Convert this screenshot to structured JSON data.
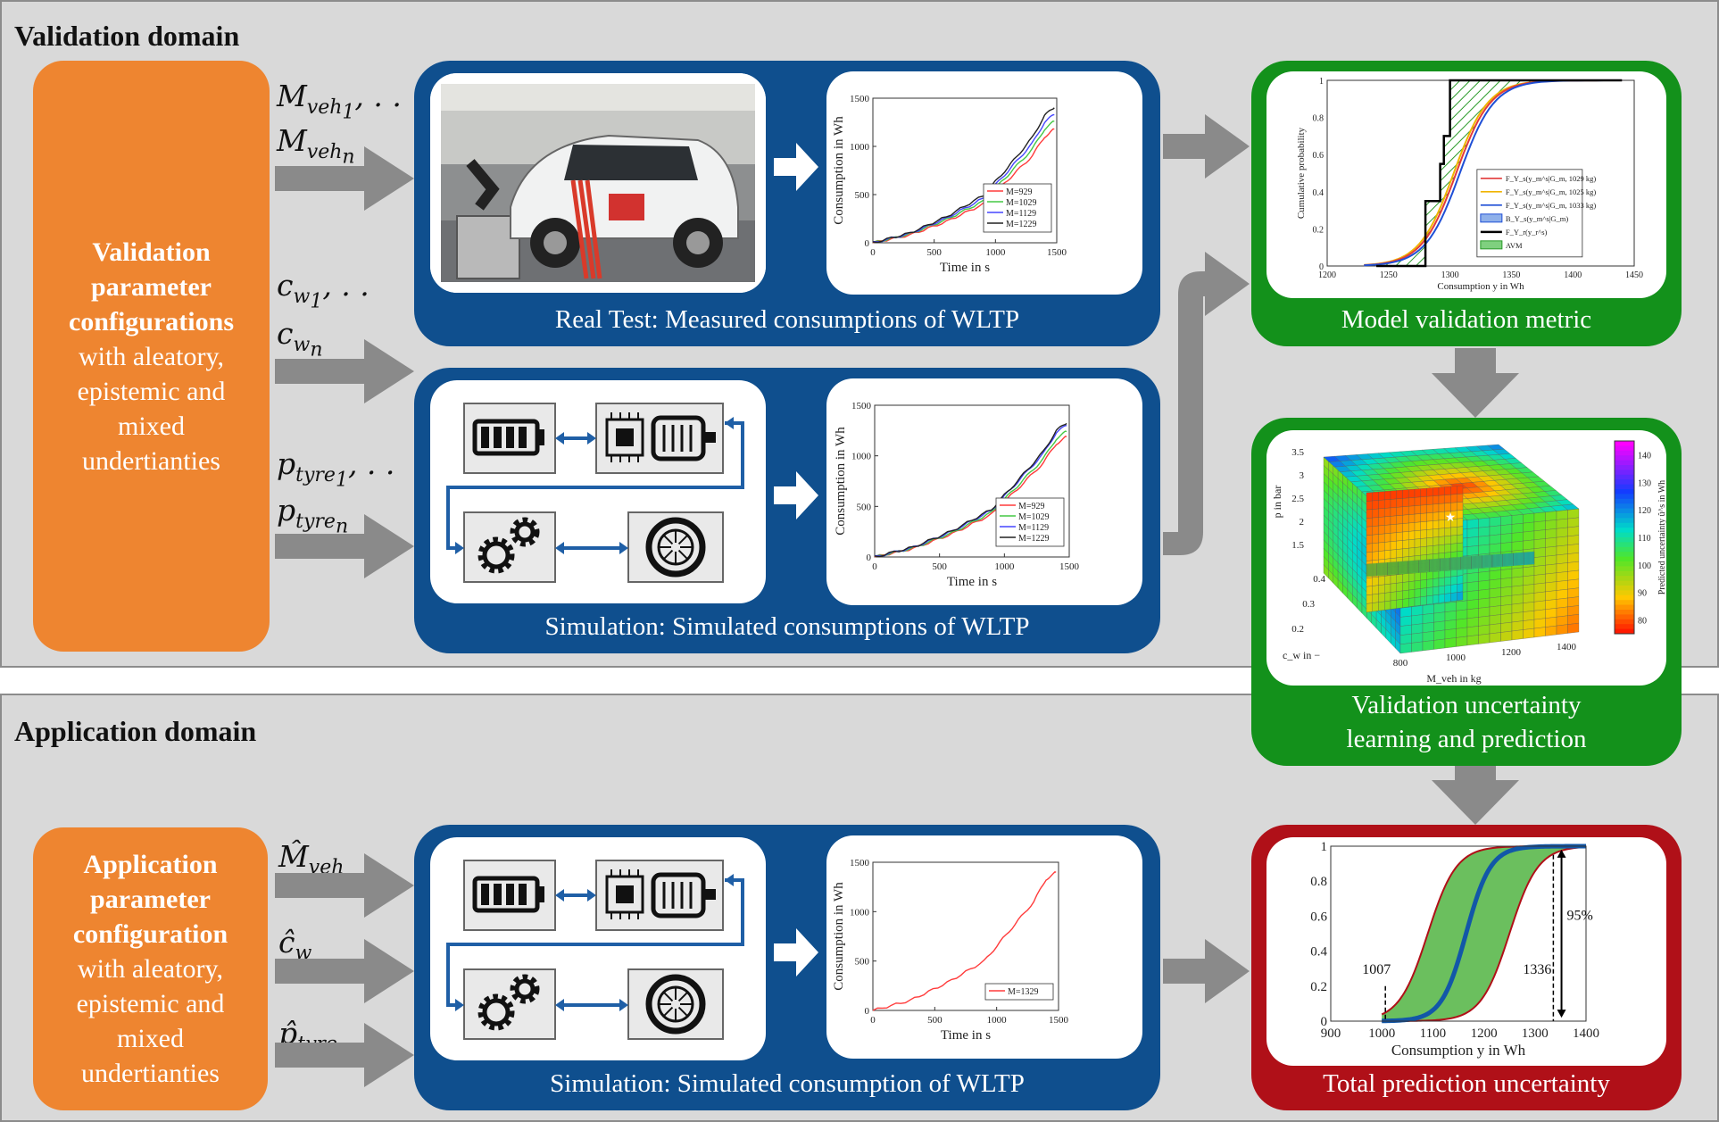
{
  "validation": {
    "title": "Validation domain",
    "config": {
      "bold1": "Validation",
      "bold2": "parameter",
      "bold3": "configurations",
      "rest1": "with aleatory,",
      "rest2": "epistemic and",
      "rest3": "mixed",
      "rest4": "undertianties"
    },
    "params": {
      "m1": "M",
      "m1_sub": "veh",
      "m1_idx": "1",
      "m1_dots": ", . .",
      "mn_sub": "veh",
      "mn_idx": "n",
      "c1": "c",
      "c1_sub": "w",
      "c1_idx": "1",
      "c1_dots": ", . .",
      "cn_idx": "n",
      "p1": "p",
      "p1_sub": "tyre",
      "p1_idx": "1",
      "p1_dots": ", . .",
      "pn_idx": "n"
    },
    "real_test_caption": "Real Test: Measured consumptions of WLTP",
    "simulation_caption": "Simulation: Simulated consumptions of WLTP",
    "metric_caption": "Model validation metric",
    "uncertainty_caption_1": "Validation uncertainty",
    "uncertainty_caption_2": "learning and prediction"
  },
  "application": {
    "title": "Application domain",
    "config": {
      "bold1": "Application",
      "bold2": "parameter",
      "bold3": "configuration",
      "rest1": "with aleatory,",
      "rest2": "epistemic and",
      "rest3": "mixed",
      "rest4": "undertianties"
    },
    "params": {
      "m": "M̂",
      "m_sub": "veh",
      "c": "ĉ",
      "c_sub": "w",
      "p": "p̂",
      "p_sub": "tyre"
    },
    "simulation_caption": "Simulation: Simulated consumption of WLTP",
    "total_caption": "Total prediction uncertainty"
  },
  "chart_data": [
    {
      "type": "line",
      "name": "measured",
      "xlabel": "Time in s",
      "ylabel": "Consumption in Wh",
      "xlim": [
        0,
        1500
      ],
      "ylim": [
        0,
        1500
      ],
      "xticks": [
        0,
        500,
        1000,
        1500
      ],
      "yticks": [
        0,
        500,
        1000,
        1500
      ],
      "series": [
        {
          "name": "M=929",
          "color": "#ff3b3b",
          "points": [
            [
              0,
              0
            ],
            [
              300,
              80
            ],
            [
              600,
              220
            ],
            [
              900,
              400
            ],
            [
              1100,
              650
            ],
            [
              1300,
              900
            ],
            [
              1400,
              1100
            ],
            [
              1480,
              1180
            ]
          ]
        },
        {
          "name": "M=1029",
          "color": "#45c845",
          "points": [
            [
              0,
              0
            ],
            [
              300,
              90
            ],
            [
              600,
              240
            ],
            [
              900,
              430
            ],
            [
              1100,
              700
            ],
            [
              1300,
              970
            ],
            [
              1400,
              1180
            ],
            [
              1480,
              1260
            ]
          ]
        },
        {
          "name": "M=1129",
          "color": "#4646ff",
          "points": [
            [
              0,
              0
            ],
            [
              300,
              95
            ],
            [
              600,
              255
            ],
            [
              900,
              460
            ],
            [
              1100,
              740
            ],
            [
              1300,
              1030
            ],
            [
              1400,
              1250
            ],
            [
              1480,
              1330
            ]
          ]
        },
        {
          "name": "M=1229",
          "color": "#222222",
          "points": [
            [
              0,
              0
            ],
            [
              300,
              100
            ],
            [
              600,
              270
            ],
            [
              900,
              490
            ],
            [
              1100,
              780
            ],
            [
              1300,
              1090
            ],
            [
              1400,
              1320
            ],
            [
              1480,
              1400
            ]
          ]
        }
      ]
    },
    {
      "type": "line",
      "name": "simulated",
      "xlabel": "Time in s",
      "ylabel": "Consumption in Wh",
      "xlim": [
        0,
        1500
      ],
      "ylim": [
        0,
        1500
      ],
      "xticks": [
        0,
        500,
        1000,
        1500
      ],
      "yticks": [
        0,
        500,
        1000,
        1500
      ],
      "series": [
        {
          "name": "M=929",
          "color": "#ff3b3b",
          "points": [
            [
              0,
              0
            ],
            [
              300,
              85
            ],
            [
              600,
              230
            ],
            [
              900,
              420
            ],
            [
              1100,
              670
            ],
            [
              1300,
              930
            ],
            [
              1400,
              1120
            ],
            [
              1480,
              1190
            ]
          ]
        },
        {
          "name": "M=1029",
          "color": "#45c845",
          "points": [
            [
              0,
              0
            ],
            [
              300,
              90
            ],
            [
              600,
              240
            ],
            [
              900,
              440
            ],
            [
              1100,
              700
            ],
            [
              1300,
              970
            ],
            [
              1400,
              1170
            ],
            [
              1480,
              1240
            ]
          ]
        },
        {
          "name": "M=1129",
          "color": "#4646ff",
          "points": [
            [
              0,
              0
            ],
            [
              300,
              95
            ],
            [
              600,
              255
            ],
            [
              900,
              460
            ],
            [
              1100,
              740
            ],
            [
              1300,
              1020
            ],
            [
              1400,
              1230
            ],
            [
              1480,
              1300
            ]
          ]
        },
        {
          "name": "M=1229",
          "color": "#222222",
          "points": [
            [
              0,
              0
            ],
            [
              300,
              98
            ],
            [
              600,
              260
            ],
            [
              900,
              470
            ],
            [
              1100,
              750
            ],
            [
              1300,
              1040
            ],
            [
              1400,
              1250
            ],
            [
              1480,
              1320
            ]
          ]
        }
      ]
    },
    {
      "type": "line",
      "name": "application-simulated",
      "xlabel": "Time in s",
      "ylabel": "Consumption in Wh",
      "xlim": [
        0,
        1500
      ],
      "ylim": [
        0,
        1500
      ],
      "xticks": [
        0,
        500,
        1000,
        1500
      ],
      "yticks": [
        0,
        500,
        1000,
        1500
      ],
      "series": [
        {
          "name": "M=1329",
          "color": "#ff3b3b",
          "points": [
            [
              0,
              0
            ],
            [
              300,
              100
            ],
            [
              600,
              280
            ],
            [
              900,
              500
            ],
            [
              1100,
              800
            ],
            [
              1300,
              1100
            ],
            [
              1400,
              1330
            ],
            [
              1480,
              1400
            ]
          ]
        }
      ]
    },
    {
      "type": "line",
      "name": "cdf-metric",
      "xlabel": "Consumption y in Wh",
      "ylabel": "Cumulative probability",
      "xlim": [
        1200,
        1450
      ],
      "ylim": [
        0,
        1
      ],
      "xticks": [
        1200,
        1250,
        1300,
        1350,
        1400,
        1450
      ],
      "yticks": [
        0,
        0.2,
        0.4,
        0.6,
        0.8,
        1
      ],
      "legend": [
        "F_Y_s(y_m^s|G_m, 1029 kg)",
        "F_Y_s(y_m^s|G_m, 1025 kg)",
        "F_Y_s(y_m^s|G_m, 1033 kg)",
        "B_Y_s(y_m^s|G_m)",
        "F_Y_r(y_r^s)",
        "AVM"
      ],
      "legend_entries": [
        "F",
        "F",
        "F",
        "B",
        "F",
        "AVM"
      ]
    },
    {
      "type": "heatmap",
      "name": "uncertainty-surface",
      "xlabel": "M_veh in kg",
      "ylabel": "c_w in −",
      "zlabel": "p in bar",
      "colorbar_label": "Predicted uncertainty û^s in Wh",
      "colorbar_ticks": [
        80,
        90,
        100,
        110,
        120,
        130,
        140
      ],
      "xticks": [
        800,
        1000,
        1200,
        1400
      ],
      "yticks": [
        0.2,
        0.3,
        0.4
      ],
      "zticks": [
        1.5,
        2,
        2.5,
        3,
        3.5
      ]
    },
    {
      "type": "area",
      "name": "total-uncertainty",
      "xlabel": "Consumption y in Wh",
      "xlim": [
        900,
        1400
      ],
      "ylim": [
        0,
        1
      ],
      "xticks": [
        900,
        1000,
        1100,
        1200,
        1300,
        1400
      ],
      "yticks": [
        0,
        0.2,
        0.4,
        0.6,
        0.8,
        1
      ],
      "lower_label": "1007",
      "upper_label": "1336",
      "interval_label": "95%"
    }
  ]
}
